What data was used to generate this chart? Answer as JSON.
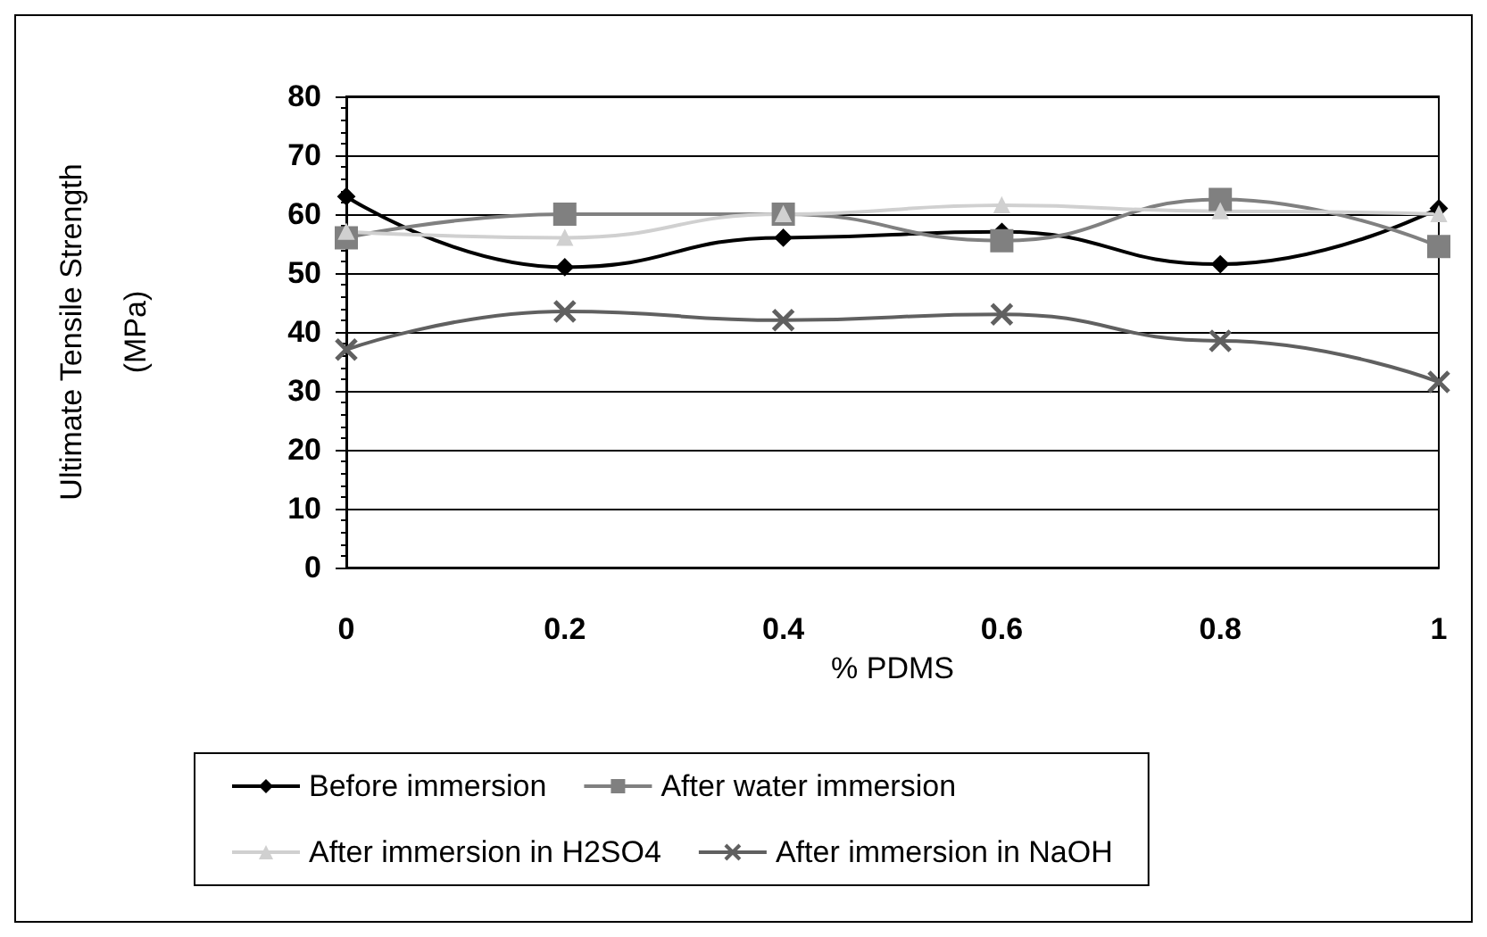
{
  "chart_data": {
    "type": "line",
    "xlabel": "% PDMS",
    "ylabel": "Ultimate Tensile Strength\n(MPa)",
    "categories": [
      "0",
      "0.2",
      "0.4",
      "0.6",
      "0.8",
      "1"
    ],
    "series": [
      {
        "name": "Before immersion",
        "color": "#000000",
        "marker": "diamond",
        "values": [
          63,
          51,
          56,
          57,
          51.5,
          61
        ]
      },
      {
        "name": "After water immersion",
        "color": "#808080",
        "marker": "square",
        "values": [
          56,
          60,
          60,
          55.5,
          62.5,
          54.5
        ]
      },
      {
        "name": "After immersion in H2SO4",
        "color": "#d0d0d0",
        "marker": "triangle",
        "values": [
          57,
          56,
          60,
          61.5,
          60.5,
          60
        ]
      },
      {
        "name": "After immersion in NaOH",
        "color": "#606060",
        "marker": "cross",
        "values": [
          37,
          43.5,
          42,
          43,
          38.5,
          31.5
        ]
      }
    ],
    "ylim": [
      0,
      80
    ],
    "yticks": [
      0,
      10,
      20,
      30,
      40,
      50,
      60,
      70,
      80
    ],
    "grid": "y",
    "legend": "bottom"
  }
}
